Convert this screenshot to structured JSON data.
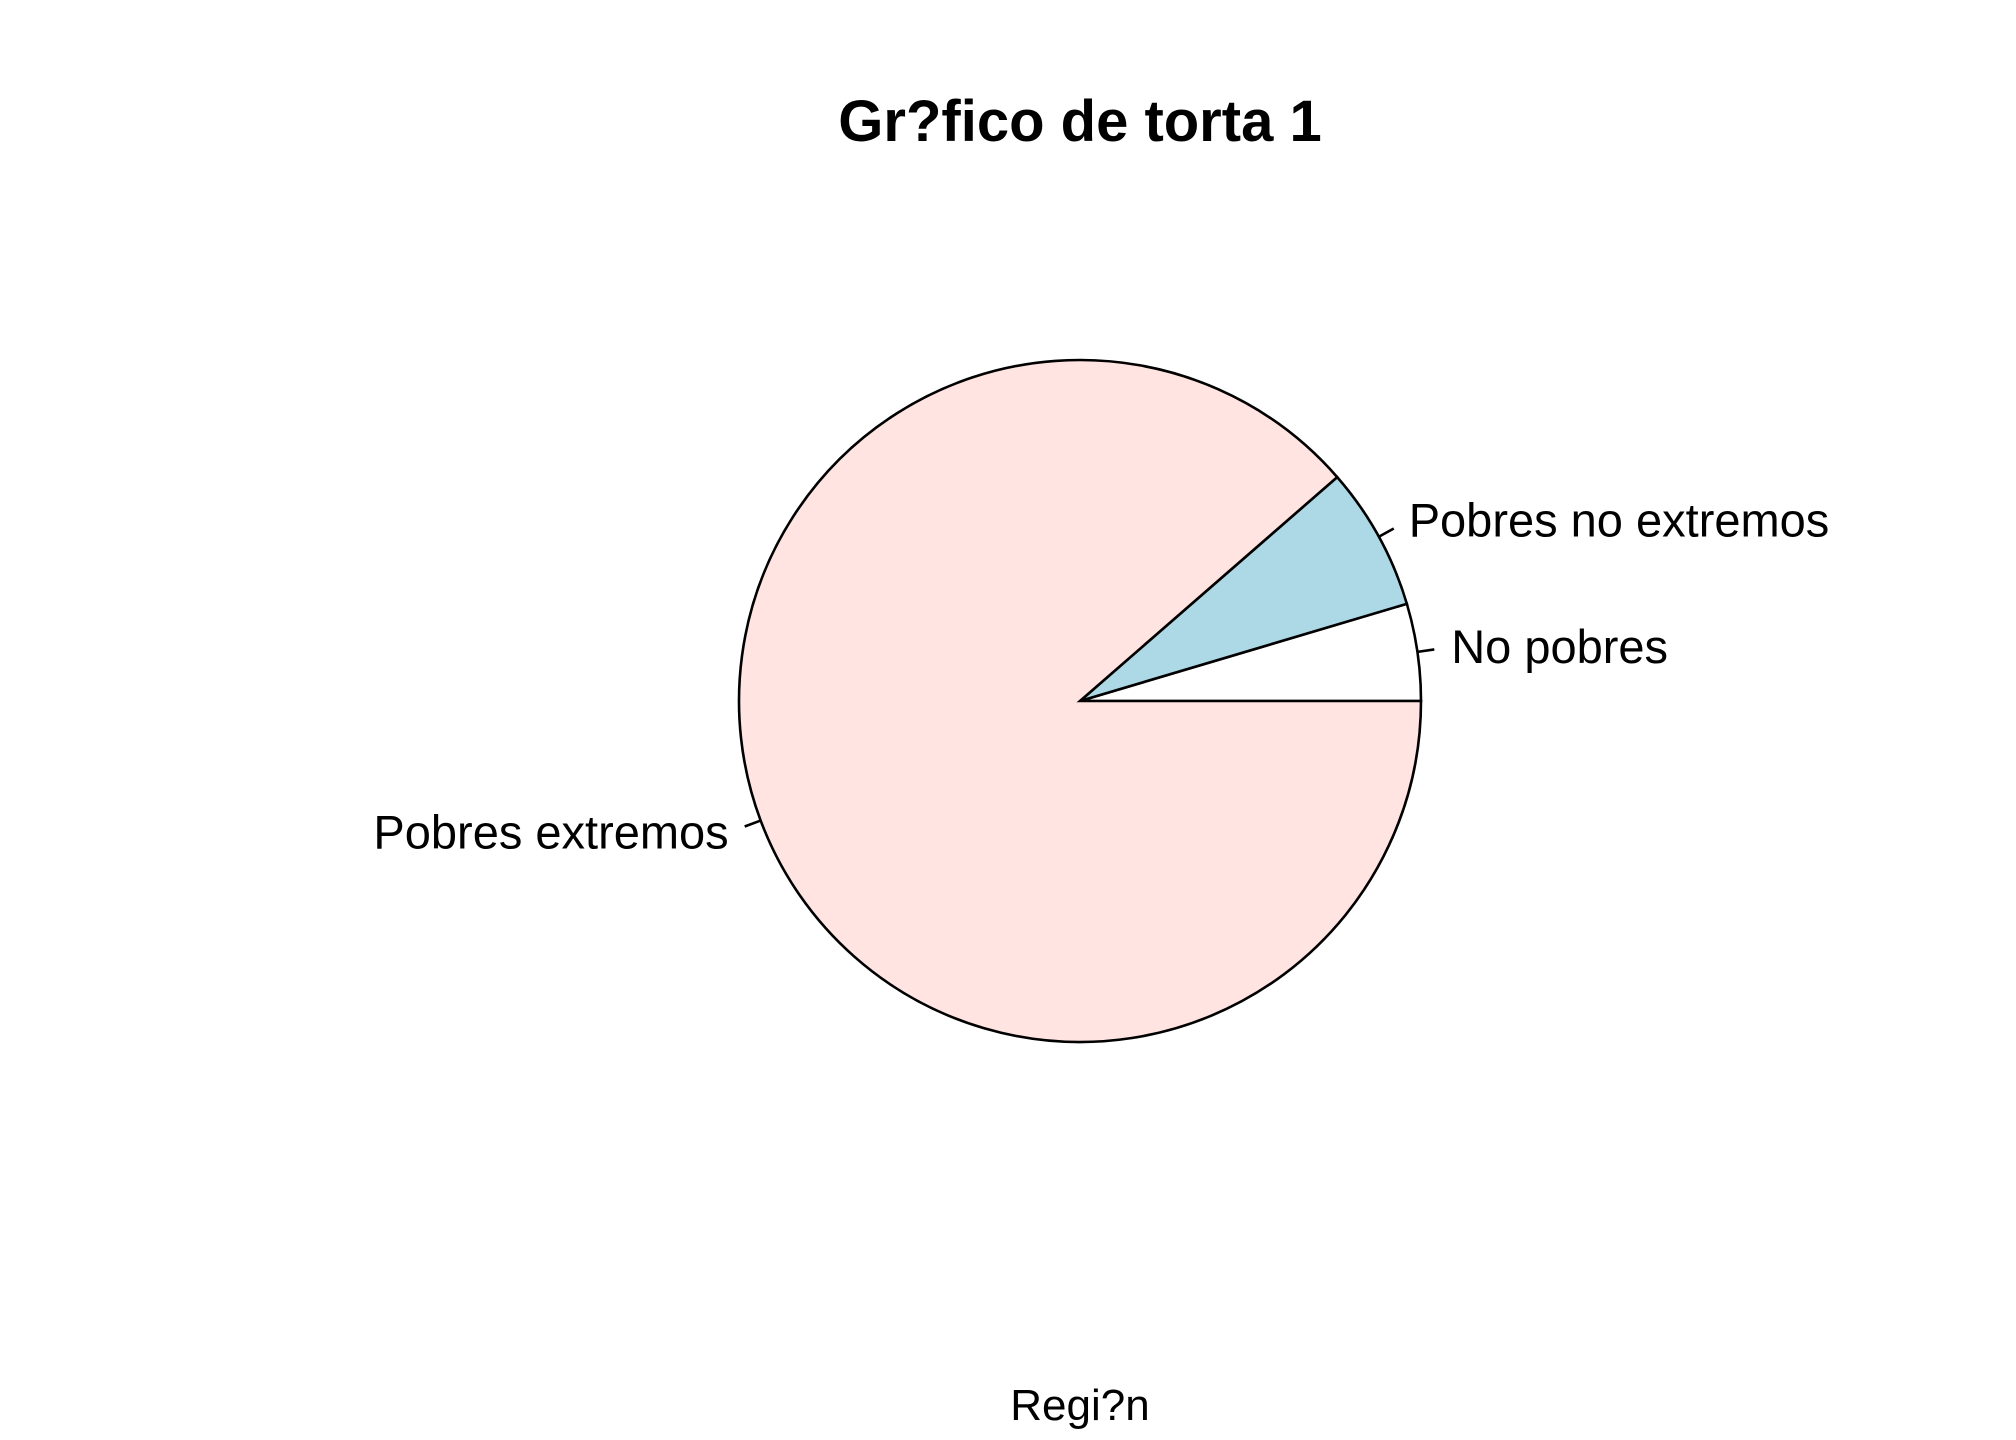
{
  "chart_data": {
    "type": "pie",
    "title": "Gr?fico de torta 1",
    "xlabel": "Regi?n",
    "ylabel": "",
    "start_angle_deg": 0,
    "direction": "counterclockwise",
    "slices": [
      {
        "label": "No pobres",
        "value": 4.6,
        "color": "#ffffff"
      },
      {
        "label": "Pobres no extremos",
        "value": 6.8,
        "color": "#add8e6"
      },
      {
        "label": "Pobres extremos",
        "value": 88.6,
        "color": "#ffe4e1"
      }
    ]
  }
}
